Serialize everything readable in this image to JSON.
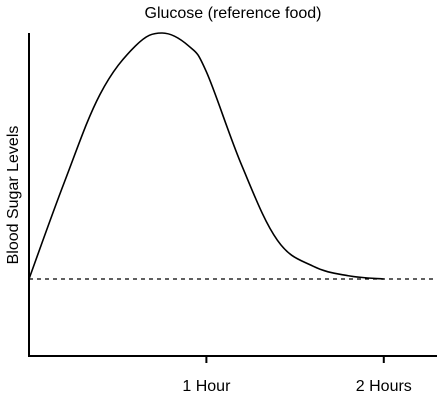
{
  "chart_data": {
    "type": "line",
    "title": "Glucose (reference food)",
    "xlabel": "",
    "ylabel": "Blood Sugar Levels",
    "x_unit": "hours",
    "xlim": [
      0,
      2.3
    ],
    "ylim": [
      0,
      100
    ],
    "x_ticks": [
      {
        "value": 1,
        "label": "1 Hour"
      },
      {
        "value": 2,
        "label": "2 Hours"
      }
    ],
    "baseline": {
      "value": 24,
      "style": "dashed"
    },
    "grid": false,
    "legend": "none",
    "series": [
      {
        "x": [
          0,
          0.2,
          0.4,
          0.6,
          0.75,
          0.9,
          1.0,
          1.2,
          1.4,
          1.6,
          1.8,
          2.0
        ],
        "y": [
          24,
          54,
          81,
          96,
          100,
          96,
          88,
          59,
          36,
          28,
          25,
          24
        ]
      }
    ],
    "colors": {
      "line": "#000000",
      "axis": "#000000",
      "baseline": "#000000"
    }
  }
}
